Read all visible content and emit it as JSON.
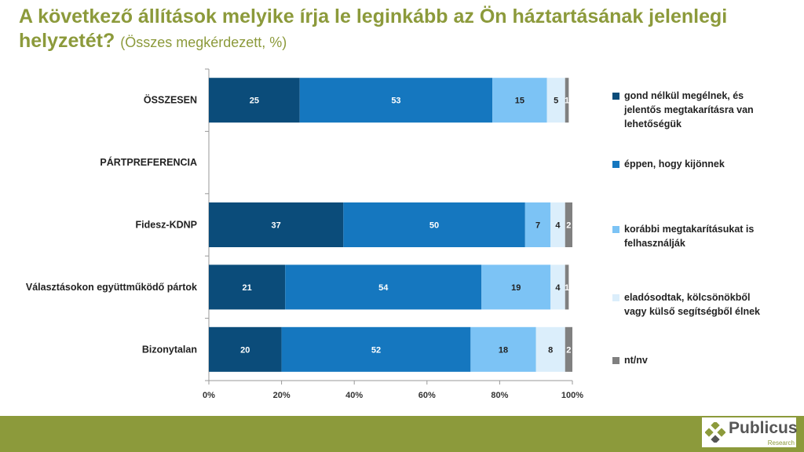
{
  "title": {
    "main": "A következő állítások melyike írja le leginkább az Ön háztartásának jelenlegi helyzetét?",
    "subtitle": "(Összes megkérdezett, %)"
  },
  "chart_data": {
    "type": "bar",
    "orientation": "horizontal",
    "stacked": true,
    "categories": [
      "ÖSSZESEN",
      "PÁRTPREFERENCIA",
      "Fidesz-KDNP",
      "Választásokon együttműködő pártok",
      "Bizonytalan"
    ],
    "series": [
      {
        "name": "gond nélkül megélnek, és jelentős megtakarításra van lehetőségük",
        "color": "#0b4c7a",
        "values": [
          25,
          null,
          37,
          21,
          20
        ]
      },
      {
        "name": "éppen, hogy kijönnek",
        "color": "#1577bf",
        "values": [
          53,
          null,
          50,
          54,
          52
        ]
      },
      {
        "name": "korábbi megtakarításukat is felhasználják",
        "color": "#7cc3f5",
        "values": [
          15,
          null,
          7,
          19,
          18
        ]
      },
      {
        "name": "eladósodtak, kölcsönökből vagy külső segítségből élnek",
        "color": "#dbeefb",
        "values": [
          5,
          null,
          4,
          4,
          8
        ]
      },
      {
        "name": "nt/nv",
        "color": "#808080",
        "values": [
          1,
          null,
          2,
          1,
          2
        ]
      }
    ],
    "xlim": [
      0,
      100
    ],
    "xticks": [
      "0%",
      "20%",
      "40%",
      "60%",
      "80%",
      "100%"
    ],
    "xlabel": "",
    "ylabel": "",
    "legend": "right"
  },
  "branding": {
    "name": "Publicus",
    "tagline": "Research",
    "color": "#8c9a3b"
  }
}
